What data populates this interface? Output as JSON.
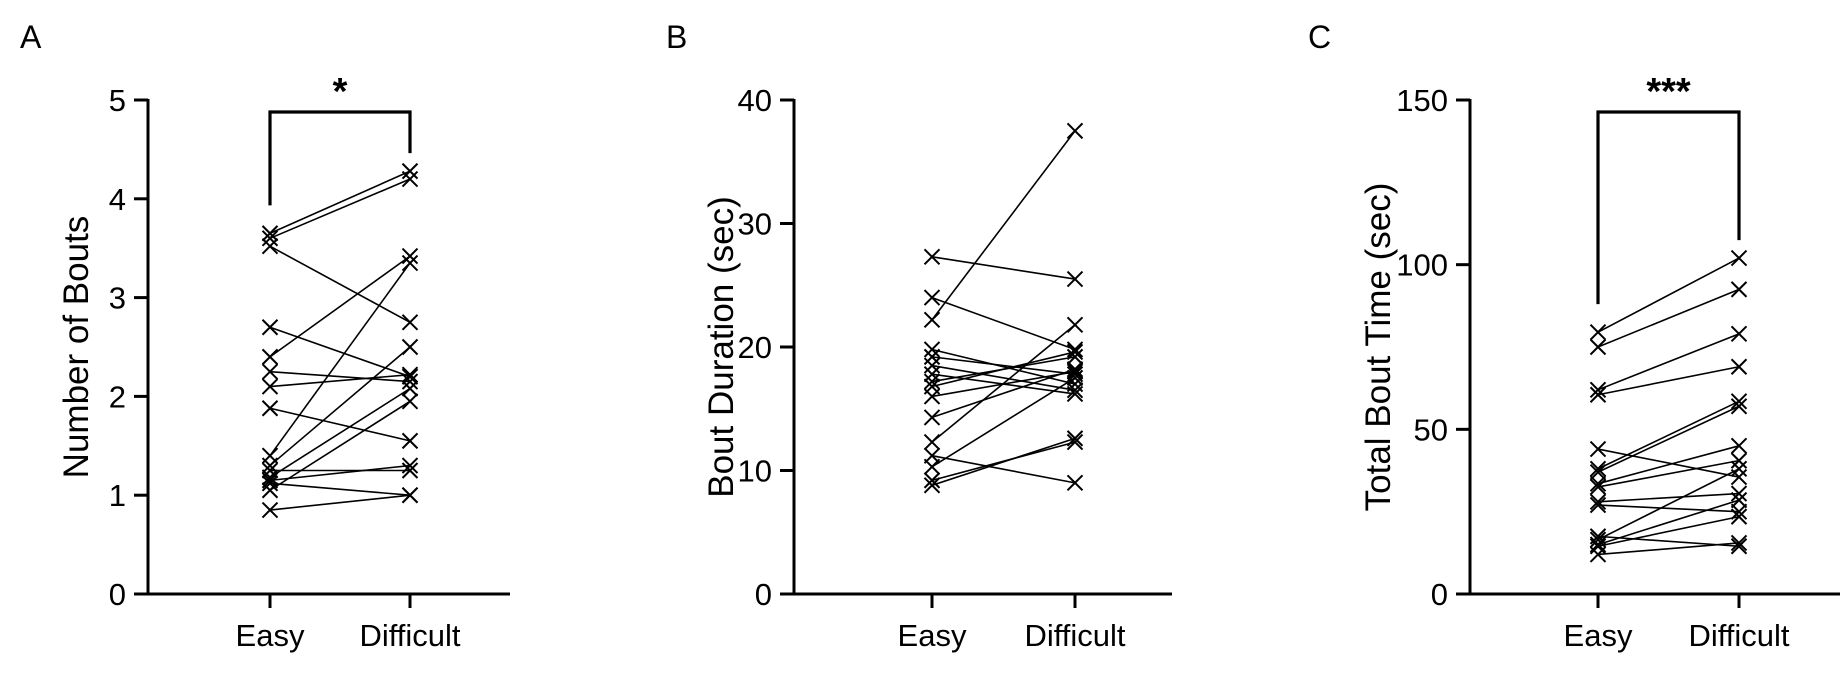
{
  "chart_data": [
    {
      "panel": "A",
      "type": "line",
      "xlabel": "",
      "ylabel": "Number of Bouts",
      "categories": [
        "Easy",
        "Difficult"
      ],
      "ylim": [
        0,
        5
      ],
      "yticks": [
        0,
        1,
        2,
        3,
        4,
        5
      ],
      "marker": "x",
      "significance": {
        "label": "*",
        "between": [
          "Easy",
          "Difficult"
        ]
      },
      "pairs": [
        [
          3.65,
          4.28
        ],
        [
          3.6,
          4.2
        ],
        [
          3.52,
          2.75
        ],
        [
          2.7,
          2.2
        ],
        [
          2.4,
          3.42
        ],
        [
          2.25,
          2.15
        ],
        [
          2.1,
          2.22
        ],
        [
          1.88,
          1.55
        ],
        [
          1.4,
          3.35
        ],
        [
          1.3,
          2.5
        ],
        [
          1.25,
          1.25
        ],
        [
          1.18,
          2.08
        ],
        [
          1.15,
          1.3
        ],
        [
          1.12,
          1.0
        ],
        [
          1.05,
          1.95
        ],
        [
          0.85,
          1.0
        ]
      ]
    },
    {
      "panel": "B",
      "type": "line",
      "xlabel": "",
      "ylabel": "Bout Duration (sec)",
      "categories": [
        "Easy",
        "Difficult"
      ],
      "ylim": [
        0,
        40
      ],
      "yticks": [
        0,
        10,
        20,
        30,
        40
      ],
      "marker": "x",
      "significance": null,
      "pairs": [
        [
          27.3,
          25.5
        ],
        [
          24.0,
          19.8
        ],
        [
          22.2,
          37.5
        ],
        [
          19.8,
          17.0
        ],
        [
          19.2,
          17.8
        ],
        [
          18.5,
          16.5
        ],
        [
          17.8,
          16.2
        ],
        [
          17.2,
          19.2
        ],
        [
          16.8,
          19.6
        ],
        [
          16.0,
          18.0
        ],
        [
          14.3,
          18.2
        ],
        [
          12.3,
          21.8
        ],
        [
          11.2,
          9.0
        ],
        [
          10.3,
          17.5
        ],
        [
          9.2,
          12.3
        ],
        [
          8.8,
          12.6
        ]
      ]
    },
    {
      "panel": "C",
      "type": "line",
      "xlabel": "",
      "ylabel": "Total Bout Time (sec)",
      "categories": [
        "Easy",
        "Difficult"
      ],
      "ylim": [
        0,
        150
      ],
      "yticks": [
        0,
        50,
        100,
        150
      ],
      "marker": "x",
      "significance": {
        "label": "***",
        "between": [
          "Easy",
          "Difficult"
        ]
      },
      "pairs": [
        [
          79.5,
          102.0
        ],
        [
          75.0,
          92.5
        ],
        [
          62.0,
          79.0
        ],
        [
          60.5,
          69.0
        ],
        [
          44.0,
          35.5
        ],
        [
          38.0,
          58.5
        ],
        [
          37.0,
          57.0
        ],
        [
          33.5,
          45.0
        ],
        [
          32.5,
          40.5
        ],
        [
          28.0,
          30.5
        ],
        [
          27.0,
          25.0
        ],
        [
          17.5,
          14.5
        ],
        [
          16.5,
          38.0
        ],
        [
          15.0,
          28.5
        ],
        [
          14.5,
          23.5
        ],
        [
          12.0,
          15.5
        ]
      ]
    }
  ]
}
